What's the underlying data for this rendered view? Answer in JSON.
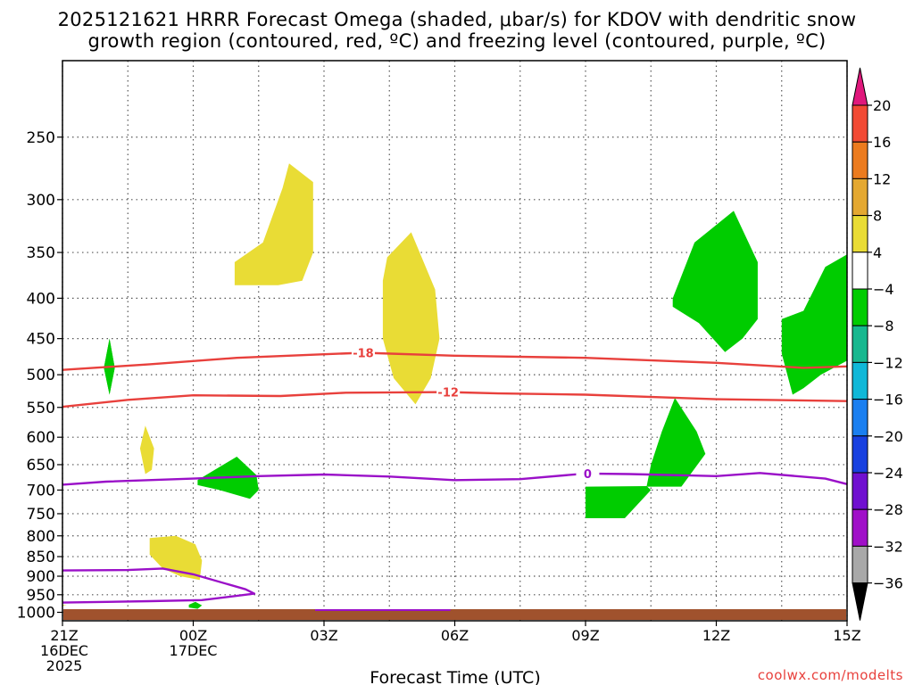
{
  "title": {
    "line1": "2025121621 HRRR Forecast Omega (shaded, μbar/s) for KDOV with dendritic snow",
    "line2": "growth region (contoured, red, ºC) and freezing level (contoured, purple, ºC)"
  },
  "footer": {
    "xlabel": "Forecast Time (UTC)",
    "credit": "coolwx.com/modelts"
  },
  "chart_data": {
    "type": "time-height cross-section (filled contours + contour lines)",
    "x_axis": {
      "label": "Forecast Time (UTC)",
      "range_hours": [
        0,
        18
      ],
      "ticks": [
        {
          "hour": 0,
          "lines": [
            "21Z",
            "16DEC",
            "2025"
          ]
        },
        {
          "hour": 3,
          "lines": [
            "00Z",
            "17DEC"
          ]
        },
        {
          "hour": 6,
          "lines": [
            "03Z"
          ]
        },
        {
          "hour": 9,
          "lines": [
            "06Z"
          ]
        },
        {
          "hour": 12,
          "lines": [
            "09Z"
          ]
        },
        {
          "hour": 15,
          "lines": [
            "12Z"
          ]
        },
        {
          "hour": 18,
          "lines": [
            "15Z"
          ]
        }
      ],
      "grid_hours": [
        0,
        1.5,
        3,
        4.5,
        6,
        7.5,
        9,
        10.5,
        12,
        13.5,
        15,
        16.5,
        18
      ]
    },
    "y_axis": {
      "unit": "hPa",
      "inverted": true,
      "range": [
        1025,
        200
      ],
      "ticks": [
        250,
        300,
        350,
        400,
        450,
        500,
        550,
        600,
        650,
        700,
        750,
        800,
        850,
        900,
        950,
        1000
      ]
    },
    "grid": true,
    "colorbar": {
      "unit": "μbar/s",
      "levels": [
        {
          "label": "20",
          "color": "#e8305c"
        },
        {
          "label": "16",
          "color": "#f24a34"
        },
        {
          "label": "12",
          "color": "#ec7b1e"
        },
        {
          "label": "8",
          "color": "#e4a831"
        },
        {
          "label": "4",
          "color": "#e9dc35"
        },
        {
          "label": "−4",
          "color": "#ffffff"
        },
        {
          "label": "−8",
          "color": "#00cc00"
        },
        {
          "label": "−12",
          "color": "#18b88f"
        },
        {
          "label": "−16",
          "color": "#10b8d8"
        },
        {
          "label": "−20",
          "color": "#1a7ff0"
        },
        {
          "label": "−24",
          "color": "#1840e0"
        },
        {
          "label": "−28",
          "color": "#7010d0"
        },
        {
          "label": "−32",
          "color": "#a010c8"
        },
        {
          "label": "−36",
          "color": "#a8a8a8"
        }
      ],
      "top_arrow_color": "#e0187c",
      "bottom_arrow_color": "#000000"
    },
    "shaded_regions": [
      {
        "class": "4 to 8",
        "color": "#e9dc35",
        "points": [
          [
            -0.5,
            978
          ],
          [
            -0.2,
            975
          ],
          [
            0.1,
            979
          ],
          [
            -0.1,
            982
          ]
        ]
      },
      {
        "class": "4 to 8",
        "color": "#e9dc35",
        "points": [
          [
            1.9,
            580
          ],
          [
            2.1,
            620
          ],
          [
            2.05,
            660
          ],
          [
            1.9,
            668
          ],
          [
            1.78,
            620
          ]
        ]
      },
      {
        "class": "4 to 8",
        "color": "#e9dc35",
        "points": [
          [
            2.0,
            805
          ],
          [
            2.6,
            800
          ],
          [
            3.05,
            820
          ],
          [
            3.2,
            860
          ],
          [
            3.15,
            910
          ],
          [
            2.7,
            900
          ],
          [
            2.3,
            880
          ],
          [
            2.0,
            845
          ]
        ]
      },
      {
        "class": "4 to 8",
        "color": "#e9dc35",
        "points": [
          [
            3.95,
            360
          ],
          [
            4.6,
            340
          ],
          [
            5.05,
            290
          ],
          [
            5.2,
            270
          ],
          [
            5.75,
            285
          ],
          [
            5.75,
            350
          ],
          [
            5.5,
            380
          ],
          [
            4.95,
            385
          ],
          [
            3.95,
            385
          ]
        ]
      },
      {
        "class": "4 to 8",
        "color": "#e9dc35",
        "points": [
          [
            7.45,
            355
          ],
          [
            8.0,
            330
          ],
          [
            8.55,
            390
          ],
          [
            8.65,
            450
          ],
          [
            8.45,
            505
          ],
          [
            8.1,
            545
          ],
          [
            7.6,
            505
          ],
          [
            7.35,
            450
          ],
          [
            7.35,
            380
          ]
        ]
      },
      {
        "class": "−4 to −8",
        "color": "#00cc00",
        "points": [
          [
            0.95,
            490
          ],
          [
            1.08,
            450
          ],
          [
            1.2,
            490
          ],
          [
            1.08,
            530
          ]
        ]
      },
      {
        "class": "−4 to −8",
        "color": "#00cc00",
        "points": [
          [
            0.95,
            490
          ],
          [
            1.08,
            450
          ],
          [
            1.2,
            490
          ],
          [
            1.08,
            530
          ]
        ]
      },
      {
        "class": "−4 to −8",
        "color": "#00cc00",
        "points": [
          [
            3.1,
            680
          ],
          [
            4.0,
            635
          ],
          [
            4.45,
            670
          ],
          [
            4.5,
            700
          ],
          [
            4.3,
            718
          ],
          [
            3.6,
            700
          ],
          [
            3.1,
            690
          ]
        ]
      },
      {
        "class": "−4 to −8",
        "color": "#00cc00",
        "points": [
          [
            2.9,
            978
          ],
          [
            3.05,
            970
          ],
          [
            3.2,
            980
          ],
          [
            3.1,
            990
          ],
          [
            2.9,
            986
          ]
        ]
      },
      {
        "class": "−4 to −8",
        "color": "#00cc00",
        "points": [
          [
            12,
            693
          ],
          [
            13.4,
            692
          ],
          [
            13.5,
            700
          ],
          [
            12.9,
            760
          ],
          [
            12,
            760
          ]
        ]
      },
      {
        "class": "−4 to −8",
        "color": "#00cc00",
        "points": [
          [
            13.4,
            693
          ],
          [
            14.2,
            693
          ],
          [
            14.75,
            630
          ],
          [
            14.55,
            590
          ],
          [
            14.05,
            535
          ],
          [
            13.75,
            590
          ],
          [
            13.5,
            650
          ]
        ]
      },
      {
        "class": "−4 to −8",
        "color": "#00cc00",
        "points": [
          [
            14.0,
            400
          ],
          [
            14.5,
            340
          ],
          [
            15.4,
            310
          ],
          [
            15.95,
            360
          ],
          [
            15.95,
            425
          ],
          [
            15.6,
            450
          ],
          [
            15.2,
            468
          ],
          [
            14.6,
            430
          ],
          [
            14.0,
            410
          ]
        ]
      },
      {
        "class": "−4 to −8",
        "color": "#00cc00",
        "points": [
          [
            16.5,
            425
          ],
          [
            17.0,
            415
          ],
          [
            17.5,
            365
          ],
          [
            18.0,
            352
          ],
          [
            18.0,
            480
          ],
          [
            17.4,
            500
          ],
          [
            17.0,
            520
          ],
          [
            16.75,
            530
          ],
          [
            16.5,
            470
          ]
        ]
      }
    ],
    "contours": [
      {
        "kind": "dendritic snow growth",
        "level_c": -18,
        "label": "-18",
        "color": "#e8403c",
        "label_at_hour": 6.9,
        "points": [
          [
            0,
            493
          ],
          [
            2,
            485
          ],
          [
            4,
            476
          ],
          [
            6,
            471
          ],
          [
            6.9,
            469
          ],
          [
            9,
            473
          ],
          [
            12,
            476
          ],
          [
            15,
            483
          ],
          [
            17,
            490
          ],
          [
            18,
            488
          ]
        ]
      },
      {
        "kind": "dendritic snow growth",
        "level_c": -12,
        "label": "-12",
        "color": "#e8403c",
        "label_at_hour": 8.85,
        "points": [
          [
            0,
            549
          ],
          [
            1.5,
            538
          ],
          [
            3,
            531
          ],
          [
            5,
            532
          ],
          [
            6.5,
            527
          ],
          [
            8.85,
            526
          ],
          [
            10,
            528
          ],
          [
            12,
            530
          ],
          [
            15,
            537
          ],
          [
            18,
            540
          ]
        ]
      },
      {
        "kind": "freezing level",
        "level_c": 0,
        "label": "0",
        "color": "#9a10c8",
        "label_at_hour": 12.05,
        "points": [
          [
            0,
            689
          ],
          [
            1,
            683
          ],
          [
            3,
            677
          ],
          [
            4.5,
            672
          ],
          [
            6,
            669
          ],
          [
            7.5,
            673
          ],
          [
            9,
            680
          ],
          [
            10.5,
            678
          ],
          [
            12,
            667
          ],
          [
            13,
            668
          ],
          [
            15,
            672
          ],
          [
            16,
            666
          ],
          [
            17.5,
            677
          ],
          [
            18,
            688
          ]
        ]
      },
      {
        "kind": "freezing level",
        "level_c": 0,
        "label": "",
        "color": "#9a10c8",
        "points": [
          [
            0,
            885
          ],
          [
            1.5,
            884
          ],
          [
            2.3,
            880
          ],
          [
            3,
            895
          ],
          [
            4.2,
            935
          ],
          [
            4.4,
            947
          ],
          [
            3.2,
            965
          ],
          [
            2,
            968
          ],
          [
            0,
            972
          ]
        ]
      }
    ]
  }
}
